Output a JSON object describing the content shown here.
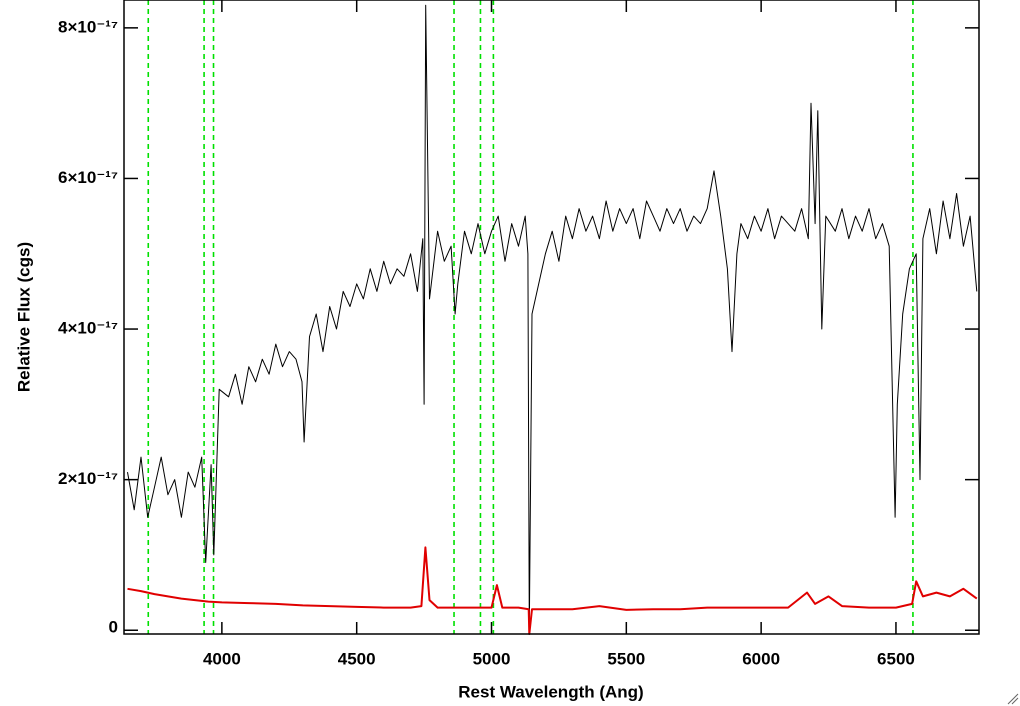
{
  "chart_data": {
    "type": "line",
    "xlabel": "Rest Wavelength (Ang)",
    "ylabel": "Relative Flux (cgs)",
    "xlim": [
      3637,
      6808
    ],
    "ylim": [
      -5e-19,
      8.37e-17
    ],
    "xticks": [
      4000,
      4500,
      5000,
      5500,
      6000,
      6500
    ],
    "yticks": [
      0,
      {
        "value": 2e-17,
        "label": "2×10⁻¹⁷"
      },
      {
        "value": 4e-17,
        "label": "4×10⁻¹⁷"
      },
      {
        "value": 6e-17,
        "label": "6×10⁻¹⁷"
      },
      {
        "value": 8e-17,
        "label": "8×10⁻¹⁷"
      }
    ],
    "vlines": {
      "color": "#00e000",
      "x": [
        3727,
        3934,
        3969,
        4861,
        4959,
        5007,
        6563
      ]
    },
    "series": [
      {
        "color": "#000000",
        "width": 1,
        "x": [
          3650,
          3675,
          3700,
          3725,
          3750,
          3775,
          3800,
          3825,
          3850,
          3875,
          3900,
          3925,
          3940,
          3960,
          3970,
          3990,
          4025,
          4050,
          4075,
          4100,
          4125,
          4150,
          4175,
          4200,
          4225,
          4250,
          4275,
          4297,
          4305,
          4325,
          4350,
          4375,
          4400,
          4425,
          4450,
          4475,
          4500,
          4525,
          4550,
          4575,
          4600,
          4625,
          4650,
          4675,
          4700,
          4725,
          4745,
          4750,
          4756,
          4770,
          4800,
          4825,
          4850,
          4865,
          4875,
          4900,
          4925,
          4950,
          4975,
          5000,
          5025,
          5050,
          5075,
          5100,
          5125,
          5135,
          5140,
          5150,
          5175,
          5200,
          5225,
          5250,
          5275,
          5300,
          5325,
          5350,
          5375,
          5400,
          5425,
          5450,
          5475,
          5500,
          5525,
          5550,
          5575,
          5600,
          5625,
          5650,
          5675,
          5700,
          5725,
          5750,
          5775,
          5800,
          5825,
          5850,
          5875,
          5892,
          5910,
          5925,
          5950,
          5975,
          6000,
          6025,
          6050,
          6075,
          6100,
          6125,
          6150,
          6175,
          6185,
          6200,
          6210,
          6225,
          6240,
          6275,
          6300,
          6325,
          6350,
          6375,
          6400,
          6425,
          6450,
          6475,
          6497,
          6505,
          6525,
          6550,
          6575,
          6589,
          6600,
          6625,
          6650,
          6675,
          6700,
          6725,
          6750,
          6775,
          6800
        ],
        "values": [
          2.1e-17,
          1.6e-17,
          2.3e-17,
          1.5e-17,
          1.9e-17,
          2.3e-17,
          1.8e-17,
          2e-17,
          1.5e-17,
          2.1e-17,
          1.9e-17,
          2.3e-17,
          9e-18,
          2.2e-17,
          1e-17,
          3.2e-17,
          3.1e-17,
          3.4e-17,
          3e-17,
          3.5e-17,
          3.3e-17,
          3.6e-17,
          3.4e-17,
          3.8e-17,
          3.5e-17,
          3.7e-17,
          3.6e-17,
          3.3e-17,
          2.5e-17,
          3.9e-17,
          4.2e-17,
          3.7e-17,
          4.3e-17,
          4e-17,
          4.5e-17,
          4.3e-17,
          4.6e-17,
          4.4e-17,
          4.8e-17,
          4.5e-17,
          4.9e-17,
          4.6e-17,
          4.8e-17,
          4.7e-17,
          5e-17,
          4.5e-17,
          5.2e-17,
          3e-17,
          8.3e-17,
          4.4e-17,
          5.3e-17,
          4.9e-17,
          5.1e-17,
          4.2e-17,
          4.6e-17,
          5.3e-17,
          5e-17,
          5.4e-17,
          5e-17,
          5.3e-17,
          5.5e-17,
          4.9e-17,
          5.4e-17,
          5.1e-17,
          5.5e-17,
          5e-17,
          0.0,
          4.2e-17,
          4.6e-17,
          5e-17,
          5.3e-17,
          4.9e-17,
          5.5e-17,
          5.2e-17,
          5.6e-17,
          5.3e-17,
          5.5e-17,
          5.2e-17,
          5.7e-17,
          5.3e-17,
          5.6e-17,
          5.4e-17,
          5.6e-17,
          5.2e-17,
          5.7e-17,
          5.5e-17,
          5.3e-17,
          5.6e-17,
          5.4e-17,
          5.6e-17,
          5.3e-17,
          5.5e-17,
          5.4e-17,
          5.6e-17,
          6.1e-17,
          5.5e-17,
          4.8e-17,
          3.7e-17,
          5e-17,
          5.4e-17,
          5.2e-17,
          5.5e-17,
          5.3e-17,
          5.6e-17,
          5.2e-17,
          5.5e-17,
          5.4e-17,
          5.3e-17,
          5.6e-17,
          5.2e-17,
          7e-17,
          5.4e-17,
          6.9e-17,
          4e-17,
          5.5e-17,
          5.3e-17,
          5.6e-17,
          5.2e-17,
          5.5e-17,
          5.3e-17,
          5.6e-17,
          5.2e-17,
          5.4e-17,
          5.1e-17,
          1.5e-17,
          3e-17,
          4.2e-17,
          4.8e-17,
          5e-17,
          2e-17,
          5.2e-17,
          5.6e-17,
          5e-17,
          5.7e-17,
          5.2e-17,
          5.8e-17,
          5.1e-17,
          5.5e-17,
          4.5e-17
        ]
      },
      {
        "color": "#e00000",
        "width": 2,
        "x": [
          3650,
          3700,
          3750,
          3800,
          3850,
          3900,
          3950,
          4000,
          4100,
          4200,
          4300,
          4400,
          4500,
          4600,
          4700,
          4740,
          4755,
          4770,
          4800,
          4900,
          5000,
          5020,
          5040,
          5100,
          5138,
          5140,
          5150,
          5300,
          5400,
          5500,
          5600,
          5700,
          5800,
          5900,
          6000,
          6100,
          6170,
          6200,
          6250,
          6300,
          6400,
          6500,
          6560,
          6575,
          6600,
          6650,
          6700,
          6750,
          6800
        ],
        "values": [
          5.5e-18,
          5.2e-18,
          4.8e-18,
          4.5e-18,
          4.2e-18,
          4e-18,
          3.8e-18,
          3.7e-18,
          3.6e-18,
          3.5e-18,
          3.3e-18,
          3.2e-18,
          3.1e-18,
          3e-18,
          3e-18,
          3.2e-18,
          1.1e-17,
          4e-18,
          3e-18,
          3e-18,
          3e-18,
          6e-18,
          3e-18,
          3e-18,
          2.8e-18,
          -5e-19,
          2.8e-18,
          2.8e-18,
          3.2e-18,
          2.7e-18,
          2.8e-18,
          2.8e-18,
          3e-18,
          3e-18,
          3e-18,
          3e-18,
          5e-18,
          3.5e-18,
          4.5e-18,
          3.2e-18,
          3e-18,
          3e-18,
          3.5e-18,
          6.5e-18,
          4.5e-18,
          5e-18,
          4.5e-18,
          5.5e-18,
          4.2e-18
        ]
      }
    ]
  }
}
